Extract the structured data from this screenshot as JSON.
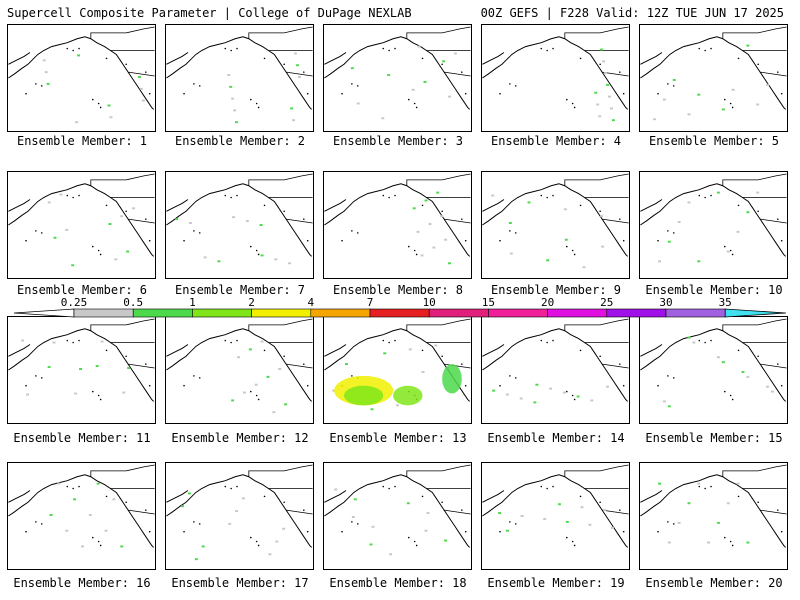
{
  "header": {
    "title": "Supercell Composite Parameter | College of DuPage NEXLAB",
    "run_info": "00Z GEFS | F228 Valid: 12Z TUE JUN 17 2025"
  },
  "panels": [
    {
      "label": "Ensemble Member: 1"
    },
    {
      "label": "Ensemble Member: 2"
    },
    {
      "label": "Ensemble Member: 3"
    },
    {
      "label": "Ensemble Member: 4"
    },
    {
      "label": "Ensemble Member: 5"
    },
    {
      "label": "Ensemble Member: 6"
    },
    {
      "label": "Ensemble Member: 7"
    },
    {
      "label": "Ensemble Member: 8"
    },
    {
      "label": "Ensemble Member: 9"
    },
    {
      "label": "Ensemble Member: 10"
    },
    {
      "label": "Ensemble Member: 11"
    },
    {
      "label": "Ensemble Member: 12"
    },
    {
      "label": "Ensemble Member: 13"
    },
    {
      "label": "Ensemble Member: 14"
    },
    {
      "label": "Ensemble Member: 15"
    },
    {
      "label": "Ensemble Member: 16"
    },
    {
      "label": "Ensemble Member: 17"
    },
    {
      "label": "Ensemble Member: 18"
    },
    {
      "label": "Ensemble Member: 19"
    },
    {
      "label": "Ensemble Member: 20"
    }
  ],
  "colorbar": {
    "ticks": [
      "0.25",
      "0.5",
      "1",
      "2",
      "4",
      "7",
      "10",
      "15",
      "20",
      "25",
      "30",
      "35"
    ],
    "colors": [
      "#c8c8c8",
      "#4cd94c",
      "#80e61a",
      "#f0f000",
      "#f5a500",
      "#e62020",
      "#e0207a",
      "#f0209a",
      "#e010e0",
      "#a010e8",
      "#a060e0",
      "#40e0f0"
    ]
  }
}
